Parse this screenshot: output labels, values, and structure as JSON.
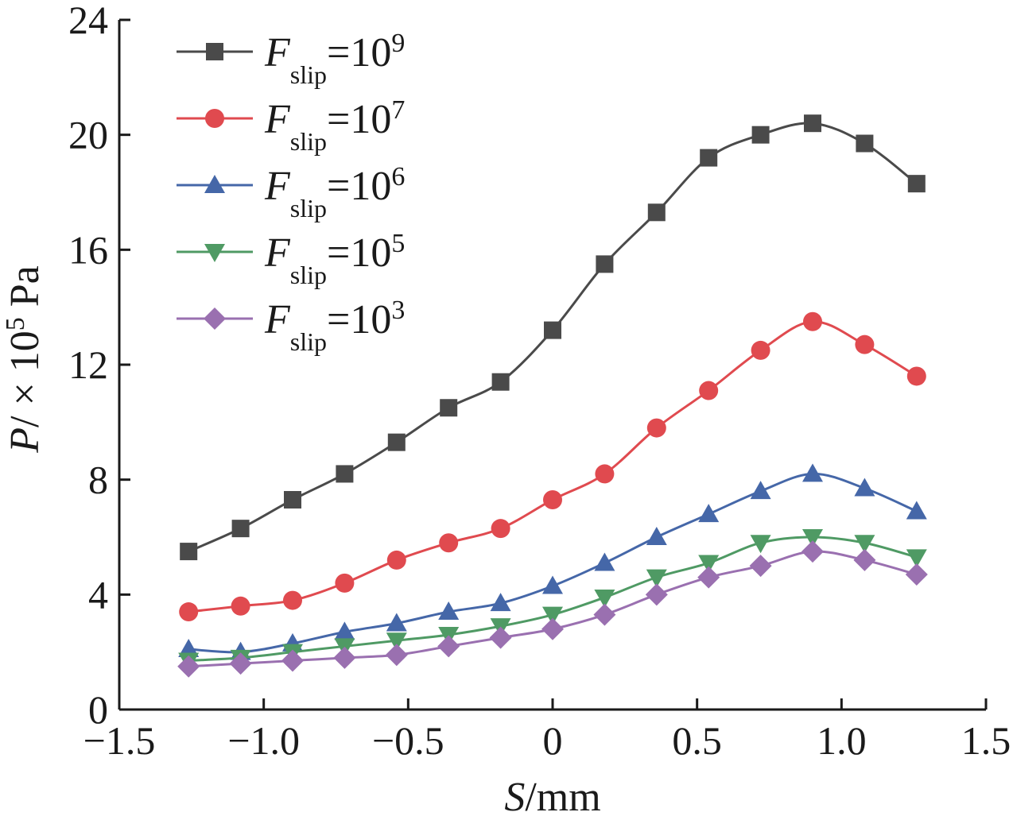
{
  "chart_data": {
    "type": "line",
    "xlabel": {
      "var": "S",
      "unit": "/mm"
    },
    "ylabel": {
      "var": "P",
      "rest": "/ × 10",
      "exp": "5",
      "unit": " Pa"
    },
    "xlim": [
      -1.5,
      1.5
    ],
    "ylim": [
      0,
      24
    ],
    "xticks": [
      -1.5,
      -1.0,
      -0.5,
      0,
      0.5,
      1.0,
      1.5
    ],
    "xtick_labels": [
      "−1.5",
      "−1.0",
      "−0.5",
      "0",
      "0.5",
      "1.0",
      "1.5"
    ],
    "yticks": [
      0,
      4,
      8,
      12,
      16,
      20,
      24
    ],
    "ytick_labels": [
      "0",
      "4",
      "8",
      "12",
      "16",
      "20",
      "24"
    ],
    "legend_position": "top-left",
    "x": [
      -1.26,
      -1.08,
      -0.9,
      -0.72,
      -0.54,
      -0.36,
      -0.18,
      0,
      0.18,
      0.36,
      0.54,
      0.72,
      0.9,
      1.08,
      1.26
    ],
    "series": [
      {
        "label_main": "F",
        "label_sub": "slip",
        "label_eq": "=10",
        "label_exp": "9",
        "color": "#4a4a4a",
        "marker": "square",
        "values": [
          5.5,
          6.3,
          7.3,
          8.2,
          9.3,
          10.5,
          11.4,
          13.2,
          15.5,
          17.3,
          19.2,
          20.0,
          20.4,
          19.7,
          18.3
        ]
      },
      {
        "label_main": "F",
        "label_sub": "slip",
        "label_eq": "=10",
        "label_exp": "7",
        "color": "#e04a4f",
        "marker": "circle",
        "values": [
          3.4,
          3.6,
          3.8,
          4.4,
          5.2,
          5.8,
          6.3,
          7.3,
          8.2,
          9.8,
          11.1,
          12.5,
          13.5,
          12.7,
          11.6
        ]
      },
      {
        "label_main": "F",
        "label_sub": "slip",
        "label_eq": "=10",
        "label_exp": "6",
        "color": "#4567a8",
        "marker": "triangle-up",
        "values": [
          2.1,
          2.0,
          2.3,
          2.7,
          3.0,
          3.4,
          3.7,
          4.3,
          5.1,
          6.0,
          6.8,
          7.6,
          8.2,
          7.7,
          6.9
        ]
      },
      {
        "label_main": "F",
        "label_sub": "slip",
        "label_eq": "=10",
        "label_exp": "5",
        "color": "#4f9a64",
        "marker": "triangle-down",
        "values": [
          1.7,
          1.8,
          2.0,
          2.2,
          2.4,
          2.6,
          2.9,
          3.3,
          3.9,
          4.6,
          5.1,
          5.8,
          6.0,
          5.8,
          5.3
        ]
      },
      {
        "label_main": "F",
        "label_sub": "slip",
        "label_eq": "=10",
        "label_exp": "3",
        "color": "#9a70b0",
        "marker": "diamond",
        "values": [
          1.5,
          1.6,
          1.7,
          1.8,
          1.9,
          2.2,
          2.5,
          2.8,
          3.3,
          4.0,
          4.6,
          5.0,
          5.5,
          5.2,
          4.7
        ]
      }
    ]
  }
}
